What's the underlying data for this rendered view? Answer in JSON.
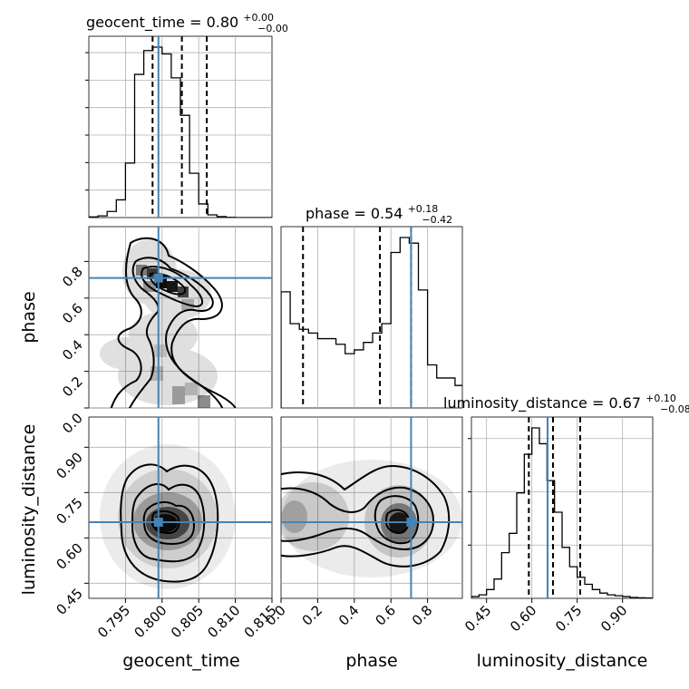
{
  "chart_data": {
    "type": "corner",
    "parameters": [
      {
        "name": "geocent_time",
        "title_prefix": "geocent_time = ",
        "median": "0.80",
        "plus": "+0.00",
        "minus": "−0.00",
        "range": [
          0.79,
          0.815
        ],
        "ticks": [
          0.795,
          0.8,
          0.805,
          0.81,
          0.815
        ],
        "tick_labels": [
          "0.795",
          "0.800",
          "0.805",
          "0.810",
          "0.815"
        ],
        "injection": 0.7995,
        "quantiles": [
          0.7987,
          0.8027,
          0.8061
        ],
        "hist": {
          "edges_start": 0.79,
          "bin_width": 0.00125,
          "counts": [
            0.2,
            0.5,
            1.8,
            5.2,
            16.0,
            42.0,
            49.0,
            50.0,
            48.0,
            41.0,
            30.0,
            13.0,
            4.0,
            0.8,
            0.3,
            0.05,
            0.0,
            0.0,
            0.0,
            0.0
          ]
        }
      },
      {
        "name": "phase",
        "title_prefix": "phase = ",
        "median": "0.54",
        "plus": "+0.18",
        "minus": "−0.42",
        "range": [
          0.0,
          0.99
        ],
        "ticks": [
          0.0,
          0.2,
          0.4,
          0.6,
          0.8
        ],
        "tick_labels": [
          "0.0",
          "0.2",
          "0.4",
          "0.6",
          "0.8"
        ],
        "injection": 0.71,
        "quantiles": [
          0.12,
          0.54,
          0.71
        ],
        "hist": {
          "edges_start": 0.0,
          "bin_width": 0.05,
          "counts": [
            62.0,
            45.0,
            42.0,
            40.0,
            37.0,
            37.0,
            34.0,
            29.0,
            31.0,
            35.0,
            40.0,
            45.0,
            83.0,
            91.0,
            88.0,
            63.0,
            23.0,
            16.0,
            16.0,
            12.0
          ]
        }
      },
      {
        "name": "luminosity_distance",
        "title_prefix": "luminosity_distance = ",
        "median": "0.67",
        "plus": "+0.10",
        "minus": "−0.08",
        "range": [
          0.4,
          1.0
        ],
        "ticks": [
          0.45,
          0.6,
          0.75,
          0.9
        ],
        "tick_labels": [
          "0.45",
          "0.60",
          "0.75",
          "0.90"
        ],
        "injection": 0.652,
        "quantiles": [
          0.59,
          0.67,
          0.76
        ],
        "hist": {
          "edges_start": 0.4,
          "bin_width": 0.025,
          "counts": [
            1.0,
            2.0,
            5.0,
            11.0,
            26.0,
            37.0,
            60.0,
            82.0,
            97.0,
            88.0,
            67.0,
            49.0,
            29.0,
            18.0,
            12.0,
            8.0,
            5.0,
            3.0,
            2.0,
            1.5,
            1.0,
            0.5,
            0.3,
            0.2
          ]
        }
      }
    ],
    "axis_labels": {
      "x": [
        "geocent_time",
        "phase",
        "luminosity_distance"
      ],
      "y": [
        "phase",
        "luminosity_distance"
      ]
    },
    "injection_color": "#4682b4",
    "grid": true
  }
}
